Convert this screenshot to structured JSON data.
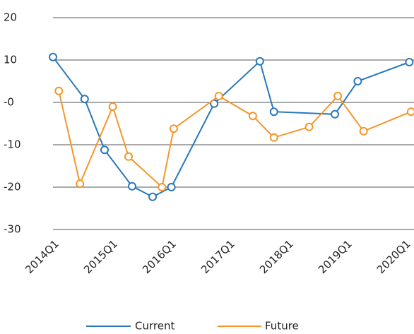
{
  "chart_data": {
    "type": "line",
    "xlim": [
      2014,
      2020.16
    ],
    "xticks": [
      {
        "value": 2014,
        "label": "2014Q1"
      },
      {
        "value": 2015,
        "label": "2015Q1"
      },
      {
        "value": 2016,
        "label": "2016Q1"
      },
      {
        "value": 2017,
        "label": "2017Q1"
      },
      {
        "value": 2018,
        "label": "2018Q1"
      },
      {
        "value": 2019,
        "label": "2019Q1"
      },
      {
        "value": 2020,
        "label": "2020Q1"
      }
    ],
    "ylim": [
      -30,
      20
    ],
    "yticks": [
      20,
      10,
      {
        "value": 0,
        "label": "-0"
      },
      -10,
      -20,
      -30
    ],
    "grid": true,
    "legend": "bottom",
    "series": [
      {
        "name": "Current",
        "color": "#2a78b8",
        "x": [
          2014,
          2014.54,
          2014.88,
          2015.35,
          2015.7,
          2016.02,
          2016.75,
          2017.53,
          2017.77,
          2018.81,
          2019.2,
          2020.08
        ],
        "values": [
          10.7,
          0.8,
          -11.2,
          -19.8,
          -22.3,
          -20,
          -0.3,
          9.7,
          -2.2,
          -2.8,
          5,
          9.5
        ]
      },
      {
        "name": "Future",
        "color": "#f5962a",
        "x": [
          2014.1,
          2014.46,
          2015.02,
          2015.29,
          2015.86,
          2016.06,
          2016.83,
          2017.41,
          2017.77,
          2018.37,
          2018.86,
          2019.3,
          2020.11
        ],
        "values": [
          2.7,
          -19.2,
          -1,
          -12.8,
          -20,
          -6.2,
          1.5,
          -3.2,
          -8.3,
          -5.8,
          1.5,
          -6.8,
          -2.2
        ]
      }
    ]
  }
}
